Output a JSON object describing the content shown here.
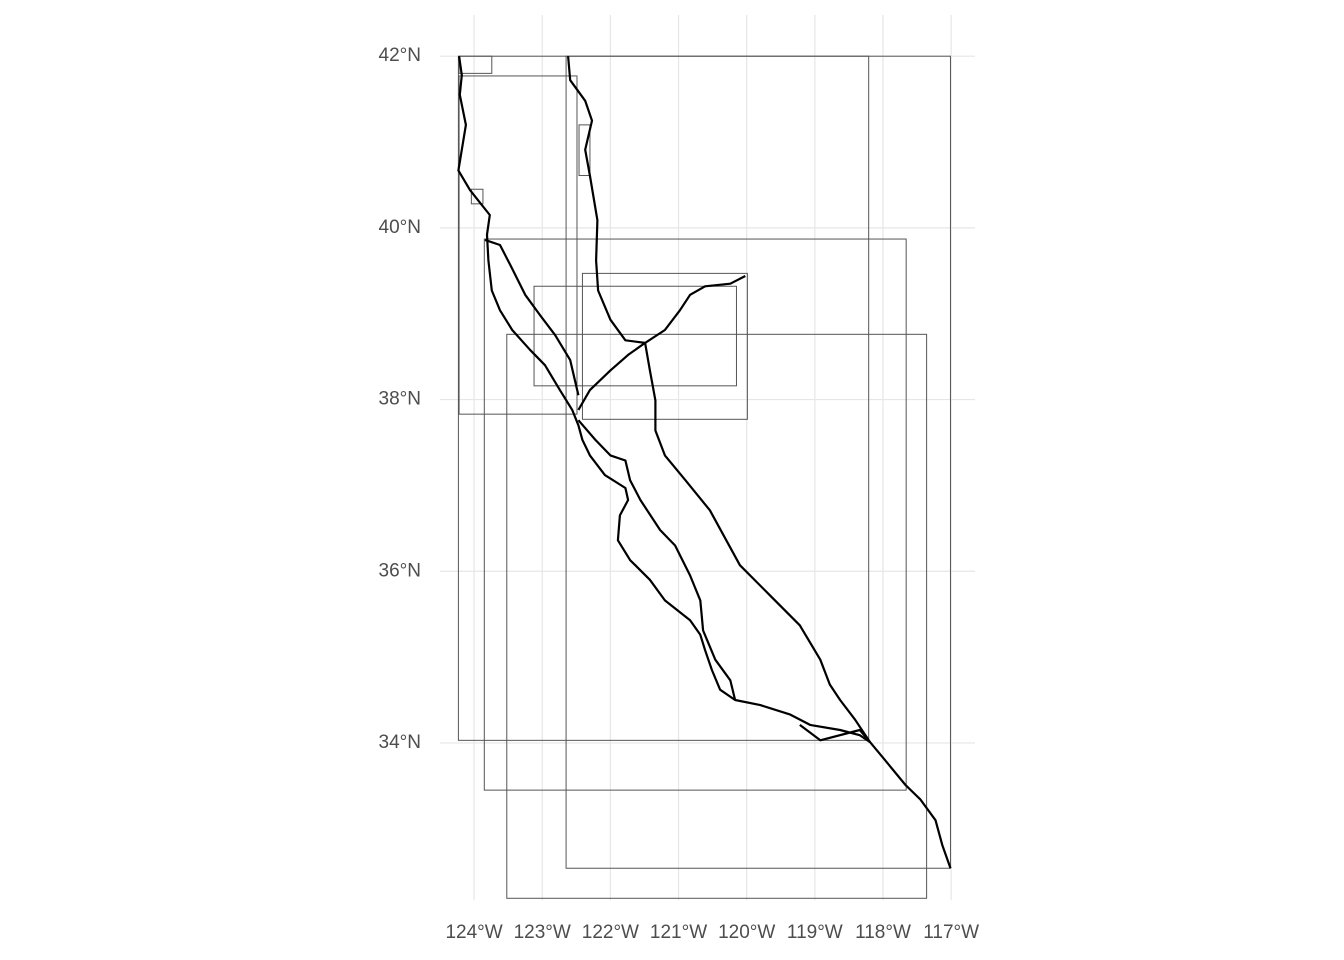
{
  "chart_data": {
    "type": "map",
    "xlim": [
      -124.5,
      -116.65
    ],
    "ylim": [
      32.17,
      42.48
    ],
    "grid": true,
    "xticks": [
      {
        "value": -124,
        "label": "124°W"
      },
      {
        "value": -123,
        "label": "123°W"
      },
      {
        "value": -122,
        "label": "122°W"
      },
      {
        "value": -121,
        "label": "121°W"
      },
      {
        "value": -120,
        "label": "120°W"
      },
      {
        "value": -119,
        "label": "119°W"
      },
      {
        "value": -118,
        "label": "118°W"
      },
      {
        "value": -117,
        "label": "117°W"
      }
    ],
    "yticks": [
      {
        "value": 34,
        "label": "34°N"
      },
      {
        "value": 36,
        "label": "36°N"
      },
      {
        "value": 38,
        "label": "38°N"
      },
      {
        "value": 40,
        "label": "40°N"
      },
      {
        "value": 42,
        "label": "42°N"
      }
    ],
    "box_color": "#555555",
    "line_color": "#000000",
    "boxes": [
      [
        -124.23,
        34.03,
        -118.21,
        42
      ],
      [
        -122.65,
        32.54,
        -117.01,
        42
      ],
      [
        -124.22,
        37.83,
        -122.49,
        41.77
      ],
      [
        -124.22,
        41.8,
        -123.74,
        42
      ],
      [
        -124.04,
        40.28,
        -123.87,
        40.45
      ],
      [
        -122.46,
        40.61,
        -122.3,
        41.2
      ],
      [
        -123.85,
        33.45,
        -117.66,
        39.87
      ],
      [
        -123.12,
        38.16,
        -120.15,
        39.32
      ],
      [
        -122.41,
        37.77,
        -119.99,
        39.47
      ],
      [
        -123.52,
        32.19,
        -117.36,
        38.76
      ]
    ],
    "lines": [
      {
        "x": [
          -124.22,
          -124.18,
          -124.21,
          -124.12,
          -124.18,
          -124.23,
          -124.06,
          -123.94,
          -123.77,
          -123.81,
          -123.79,
          -123.74,
          -123.62,
          -123.44,
          -123.18,
          -122.96,
          -122.74,
          -122.56,
          -122.47,
          -122.41,
          -122.3,
          -122.08,
          -121.78,
          -121.74,
          -121.86,
          -121.89,
          -121.71,
          -121.42,
          -121.2,
          -120.83,
          -120.68,
          -120.61,
          -120.51,
          -120.39,
          -120.17,
          -119.8,
          -119.36,
          -119.07,
          -118.63,
          -118.34,
          -118.19,
          -117.97,
          -117.67,
          -117.45,
          -117.23,
          -117.13,
          -117.01
        ],
        "y": [
          42,
          41.78,
          41.55,
          41.2,
          40.91,
          40.67,
          40.44,
          40.32,
          40.15,
          39.92,
          39.62,
          39.27,
          39.04,
          38.81,
          38.58,
          38.4,
          38.11,
          37.88,
          37.7,
          37.53,
          37.35,
          37.12,
          36.97,
          36.83,
          36.65,
          36.36,
          36.13,
          35.9,
          35.66,
          35.43,
          35.26,
          35.08,
          34.85,
          34.62,
          34.5,
          34.44,
          34.33,
          34.21,
          34.15,
          34.09,
          34.01,
          33.8,
          33.51,
          33.34,
          33.1,
          32.81,
          32.54
        ]
      },
      {
        "x": [
          -122.62,
          -122.59,
          -122.37,
          -122.27,
          -122.37,
          -122.3,
          -122.19,
          -122.21,
          -122.18,
          -122,
          -121.78,
          -121.49,
          -121.42,
          -121.34,
          -121.34,
          -121.2,
          -120.9,
          -120.54,
          -120.1,
          -119.66,
          -119.22,
          -118.92,
          -118.78,
          -118.63,
          -118.41,
          -118.19
        ],
        "y": [
          42,
          41.72,
          41.48,
          41.25,
          40.91,
          40.61,
          40.09,
          39.62,
          39.27,
          38.93,
          38.69,
          38.66,
          38.34,
          37.99,
          37.64,
          37.35,
          37.06,
          36.71,
          36.07,
          35.72,
          35.37,
          34.97,
          34.68,
          34.5,
          34.27,
          34.01
        ]
      },
      {
        "x": [
          -121.49,
          -121.2,
          -120.98,
          -120.83,
          -120.61,
          -120.24,
          -120.02
        ],
        "y": [
          38.66,
          38.81,
          39.04,
          39.22,
          39.32,
          39.35,
          39.44
        ]
      },
      {
        "x": [
          -122.47,
          -122.3,
          -122,
          -121.74,
          -121.49
        ],
        "y": [
          37.88,
          38.11,
          38.34,
          38.52,
          38.66
        ]
      },
      {
        "x": [
          -122.47,
          -122.22,
          -122,
          -121.78,
          -121.71,
          -121.56,
          -121.27,
          -121.05,
          -120.83,
          -120.68,
          -120.64,
          -120.46,
          -120.24,
          -120.17
        ],
        "y": [
          37.76,
          37.53,
          37.35,
          37.29,
          37.06,
          36.83,
          36.48,
          36.3,
          35.95,
          35.66,
          35.31,
          34.97,
          34.73,
          34.5
        ]
      },
      {
        "x": [
          -123.84,
          -123.62,
          -123.47,
          -123.25,
          -123.03,
          -122.81,
          -122.59,
          -122.47
        ],
        "y": [
          39.86,
          39.8,
          39.57,
          39.22,
          38.98,
          38.75,
          38.46,
          38.05
        ]
      },
      {
        "x": [
          -119.22,
          -118.92,
          -118.34,
          -118.19
        ],
        "y": [
          34.21,
          34.03,
          34.15,
          34.01
        ]
      }
    ]
  }
}
